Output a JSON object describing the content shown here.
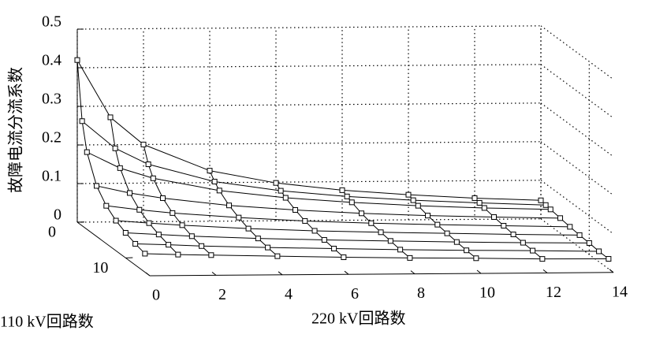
{
  "chart_data": {
    "type": "surface",
    "xlabel": "220 kV回路数",
    "ylabel": "110 kV回路数",
    "zlabel": "故障电流分流系数",
    "x": [
      0,
      1,
      2,
      4,
      6,
      8,
      10,
      12,
      14
    ],
    "y": [
      0,
      1,
      2,
      4,
      6,
      8,
      10,
      12,
      14
    ],
    "z": [
      [
        0.42,
        0.271,
        0.2,
        0.131,
        0.098,
        0.078,
        0.065,
        0.055,
        0.048
      ],
      [
        0.271,
        0.2,
        0.158,
        0.112,
        0.087,
        0.071,
        0.06,
        0.052,
        0.045
      ],
      [
        0.2,
        0.158,
        0.131,
        0.098,
        0.078,
        0.065,
        0.055,
        0.048,
        0.043
      ],
      [
        0.131,
        0.112,
        0.098,
        0.078,
        0.065,
        0.055,
        0.048,
        0.043,
        0.039
      ],
      [
        0.098,
        0.087,
        0.078,
        0.065,
        0.055,
        0.048,
        0.043,
        0.039,
        0.035
      ],
      [
        0.078,
        0.071,
        0.065,
        0.055,
        0.048,
        0.043,
        0.039,
        0.035,
        0.032
      ],
      [
        0.065,
        0.06,
        0.055,
        0.048,
        0.043,
        0.039,
        0.035,
        0.032,
        0.03
      ],
      [
        0.055,
        0.052,
        0.048,
        0.043,
        0.039,
        0.035,
        0.032,
        0.03,
        0.027
      ],
      [
        0.048,
        0.045,
        0.043,
        0.039,
        0.035,
        0.032,
        0.03,
        0.027,
        0.026
      ]
    ],
    "xlim": [
      0,
      14
    ],
    "ylim": [
      0,
      15
    ],
    "zlim": [
      0,
      0.5
    ],
    "xticks": [
      0,
      2,
      4,
      6,
      8,
      10,
      12,
      14
    ],
    "yticks": [
      0,
      10
    ],
    "zticks": [
      0,
      0.1,
      0.2,
      0.3,
      0.4,
      0.5
    ],
    "grid": true,
    "color": "#000000"
  }
}
